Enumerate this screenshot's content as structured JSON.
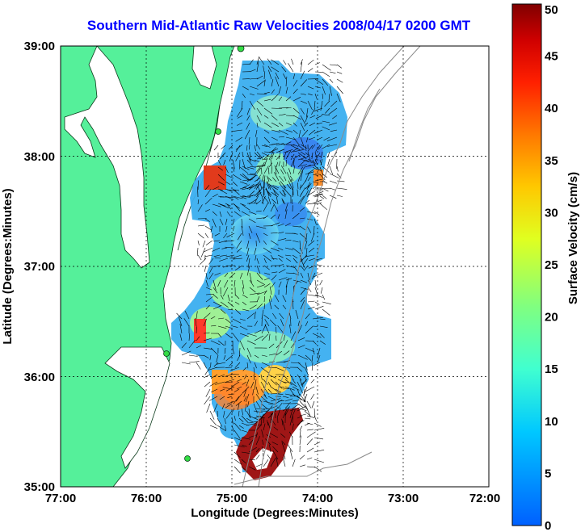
{
  "title": "Southern Mid-Atlantic Raw Velocities 2008/04/17 0200 GMT",
  "xlabel": "Longitude (Degrees:Minutes)",
  "ylabel": "Latitude (Degrees:Minutes)",
  "x_ticks": [
    "77:00",
    "76:00",
    "75:00",
    "74:00",
    "73:00",
    "72:00"
  ],
  "y_ticks": [
    "39:00",
    "38:00",
    "37:00",
    "36:00",
    "35:00"
  ],
  "colorbar": {
    "label": "Surface Velocity (cm/s)",
    "ticks": [
      "0",
      "5",
      "10",
      "15",
      "20",
      "25",
      "30",
      "35",
      "40",
      "45",
      "50"
    ],
    "min": 0,
    "max": 50
  },
  "colors": {
    "land": "#55f09a",
    "title": "#0000ff",
    "frame": "#000000"
  }
}
